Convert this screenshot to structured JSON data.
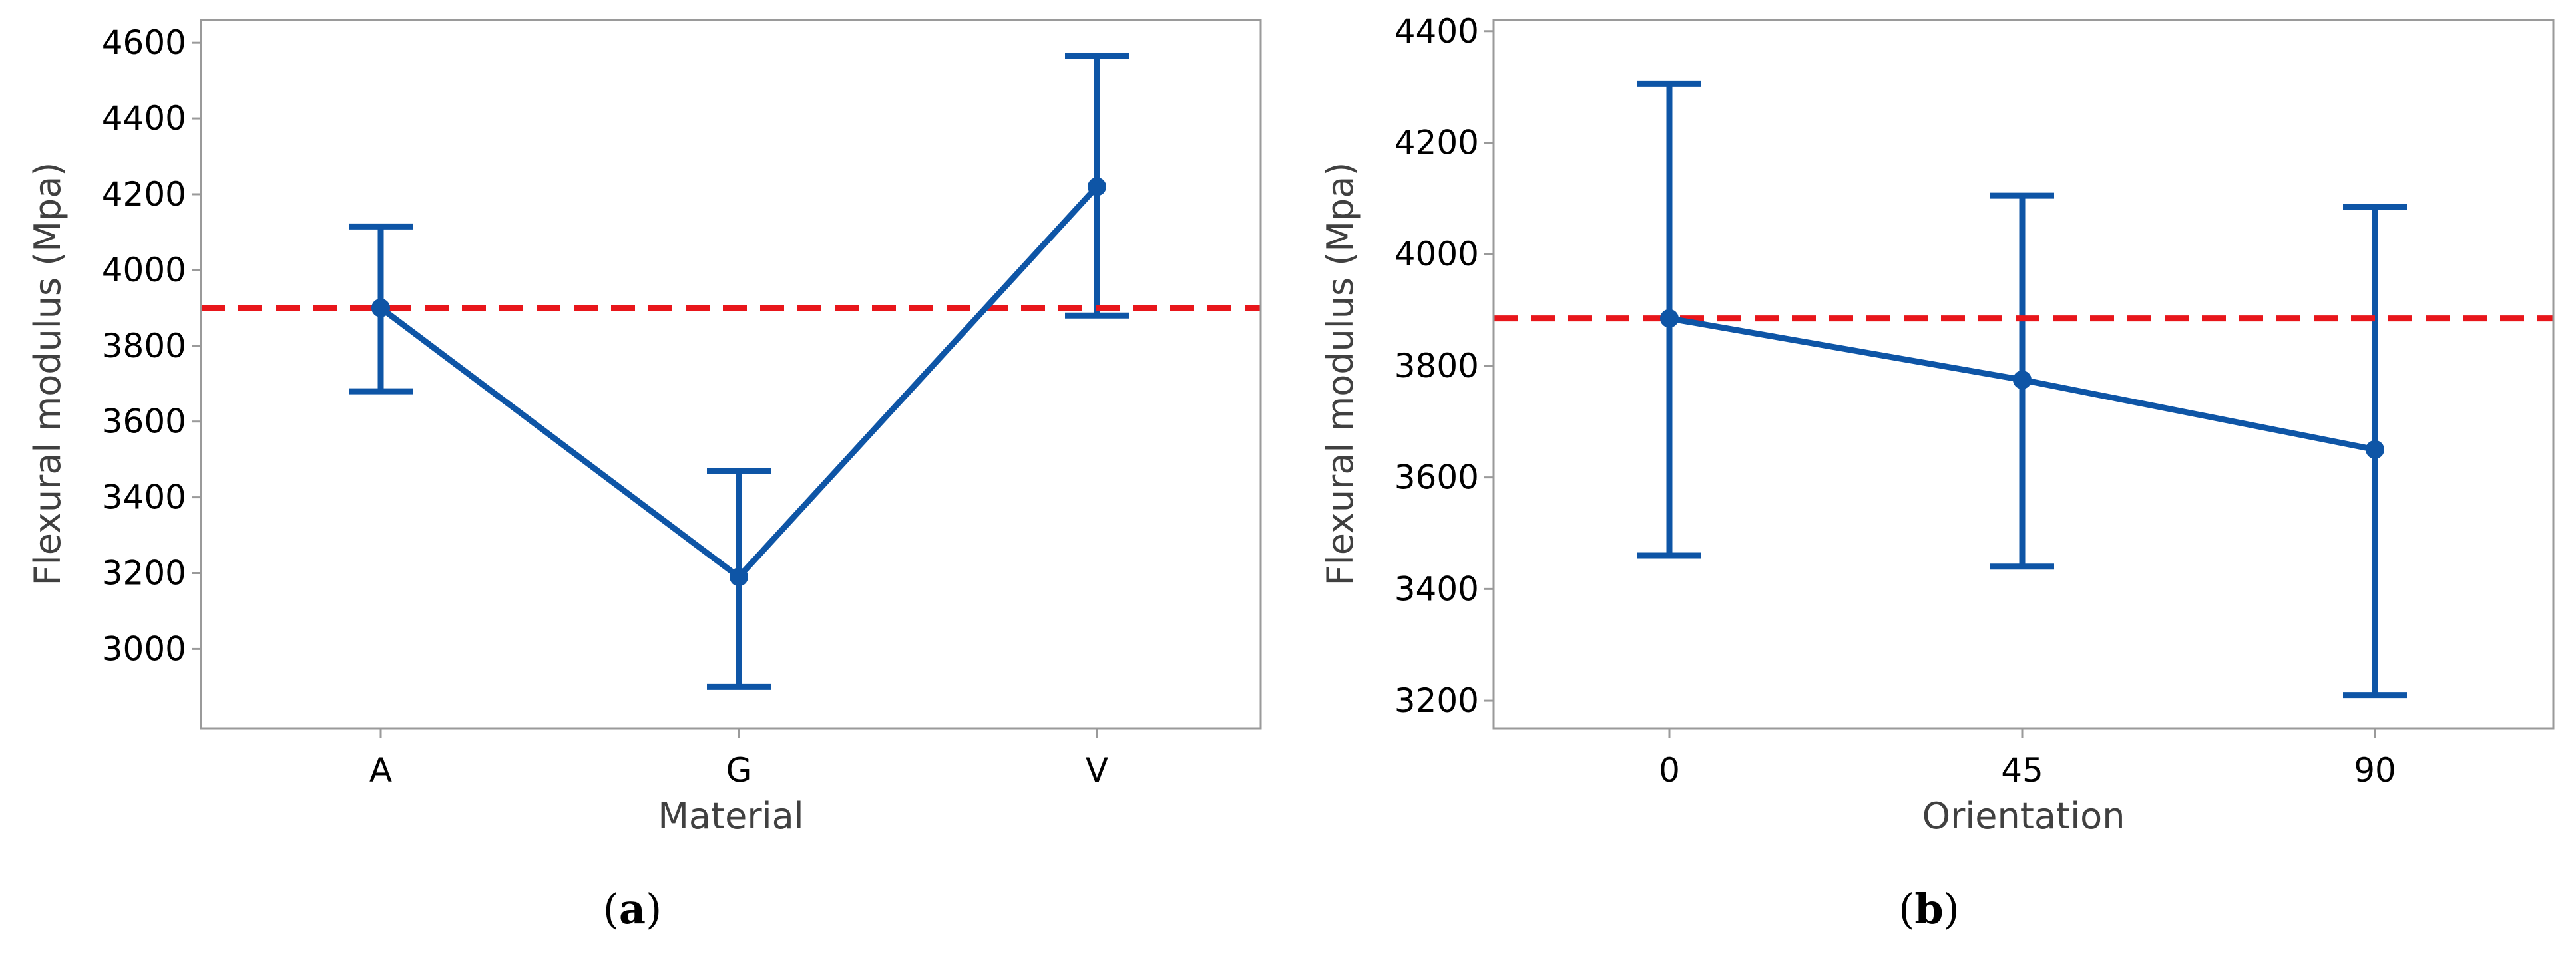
{
  "colors": {
    "series": "#0E55A6",
    "reference_line": "#E8161B",
    "frame": "#9A9A9A",
    "axis_title": "#404040",
    "tick": "#000000"
  },
  "chart_data": [
    {
      "id": "a",
      "type": "line",
      "caption": {
        "open": "(",
        "letter": "a",
        "close": ")"
      },
      "xlabel": "Material",
      "ylabel": "Flexural modulus (Mpa)",
      "categories": [
        "A",
        "G",
        "V"
      ],
      "series": [
        {
          "values": [
            3900,
            3190,
            4220
          ],
          "error_low": [
            3680,
            2900,
            3880
          ],
          "error_high": [
            4115,
            3470,
            4565
          ]
        }
      ],
      "reference_line": 3900,
      "ylim": [
        2790,
        4660
      ],
      "yticks": [
        3000,
        3200,
        3400,
        3600,
        3800,
        4000,
        4200,
        4400,
        4600
      ],
      "ytick_labels": [
        "3000",
        "3200",
        "3400",
        "3600",
        "3800",
        "4000",
        "4200",
        "4400",
        "4600"
      ],
      "grid": false
    },
    {
      "id": "b",
      "type": "line",
      "caption": {
        "open": "(",
        "letter": "b",
        "close": ")"
      },
      "xlabel": "Orientation",
      "ylabel": "Flexural modulus (Mpa)",
      "categories": [
        "0",
        "45",
        "90"
      ],
      "series": [
        {
          "values": [
            3885,
            3775,
            3650
          ],
          "error_low": [
            3460,
            3440,
            3210
          ],
          "error_high": [
            4305,
            4105,
            4085
          ]
        }
      ],
      "reference_line": 3885,
      "ylim": [
        3150,
        4420
      ],
      "yticks": [
        3200,
        3400,
        3600,
        3800,
        4000,
        4200,
        4400
      ],
      "ytick_labels": [
        "3200",
        "3400",
        "3600",
        "3800",
        "4000",
        "4200",
        "4400"
      ],
      "grid": false
    }
  ]
}
